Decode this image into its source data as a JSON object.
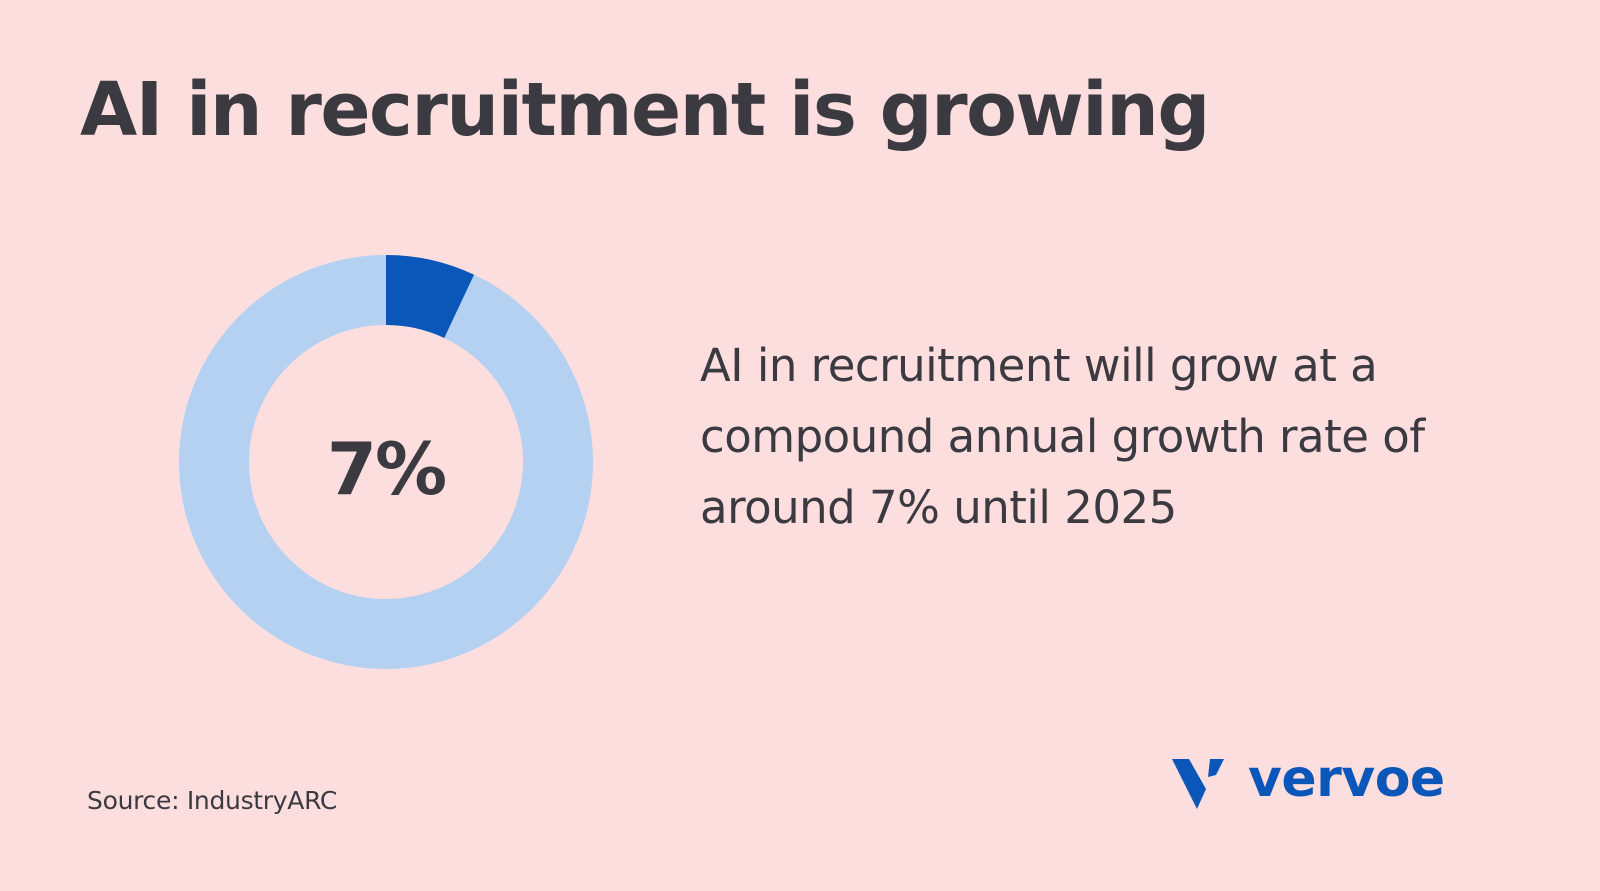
{
  "colors": {
    "background": "#FDDEDE",
    "text": "#3A3A40",
    "accent": "#0A57B9",
    "ring_remainder": "#B5D1F1"
  },
  "header": {
    "title": "AI in recruitment is growing"
  },
  "main": {
    "description": "AI in recruitment will grow at a compound annual growth rate of around 7% until 2025"
  },
  "footer": {
    "source": "Source: IndustryARC"
  },
  "brand": {
    "logo_icon": "vervoe-v-icon",
    "logo_text": "vervoe"
  },
  "chart_data": {
    "type": "pie",
    "style": "donut",
    "center_label": "7%",
    "segments": [
      {
        "value": 7,
        "color": "#0A57B9"
      },
      {
        "value": 93,
        "color": "#B5D1F1"
      }
    ]
  }
}
